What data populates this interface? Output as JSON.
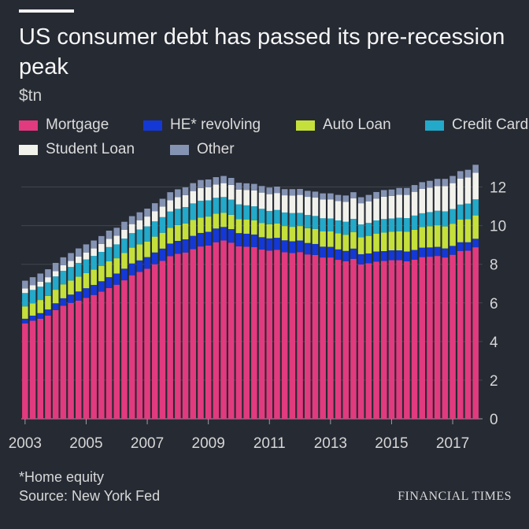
{
  "title": "US consumer debt has passed its pre-recession peak",
  "unit_label": "$tn",
  "footnote": "*Home equity",
  "source": "Source: New York Fed",
  "brand": "FINANCIAL TIMES",
  "colors": {
    "background": "#262a33",
    "mortgage": "#e23a7e",
    "he_revolving": "#1438d6",
    "auto_loan": "#c5e03a",
    "credit_card": "#23a9c9",
    "student_loan": "#f2f2ec",
    "other": "#8593b3"
  },
  "legend": [
    {
      "label": "Mortgage",
      "color": "#e23a7e"
    },
    {
      "label": "HE* revolving",
      "color": "#1438d6"
    },
    {
      "label": "Auto Loan",
      "color": "#c5e03a"
    },
    {
      "label": "Credit Card",
      "color": "#23a9c9"
    },
    {
      "label": "Student Loan",
      "color": "#f2f2ec"
    },
    {
      "label": "Other",
      "color": "#8593b3"
    }
  ],
  "chart_data": {
    "type": "bar",
    "stacked": true,
    "title": "US consumer debt has passed its pre-recession peak",
    "ylabel": "$tn",
    "ylim": [
      0,
      13
    ],
    "yticks": [
      0,
      2,
      4,
      6,
      8,
      10,
      12
    ],
    "y_axis_side": "right",
    "xticks": [
      "2003",
      "2005",
      "2007",
      "2009",
      "2011",
      "2013",
      "2015",
      "2017"
    ],
    "categories": [
      "2003Q1",
      "2003Q2",
      "2003Q3",
      "2003Q4",
      "2004Q1",
      "2004Q2",
      "2004Q3",
      "2004Q4",
      "2005Q1",
      "2005Q2",
      "2005Q3",
      "2005Q4",
      "2006Q1",
      "2006Q2",
      "2006Q3",
      "2006Q4",
      "2007Q1",
      "2007Q2",
      "2007Q3",
      "2007Q4",
      "2008Q1",
      "2008Q2",
      "2008Q3",
      "2008Q4",
      "2009Q1",
      "2009Q2",
      "2009Q3",
      "2009Q4",
      "2010Q1",
      "2010Q2",
      "2010Q3",
      "2010Q4",
      "2011Q1",
      "2011Q2",
      "2011Q3",
      "2011Q4",
      "2012Q1",
      "2012Q2",
      "2012Q3",
      "2012Q4",
      "2013Q1",
      "2013Q2",
      "2013Q3",
      "2013Q4",
      "2014Q1",
      "2014Q2",
      "2014Q3",
      "2014Q4",
      "2015Q1",
      "2015Q2",
      "2015Q3",
      "2015Q4",
      "2016Q1",
      "2016Q2",
      "2016Q3",
      "2016Q4",
      "2017Q1",
      "2017Q2",
      "2017Q3",
      "2017Q4"
    ],
    "series": [
      {
        "name": "Mortgage",
        "color": "#e23a7e",
        "values": [
          4.94,
          5.08,
          5.18,
          5.34,
          5.63,
          5.85,
          6.0,
          6.12,
          6.26,
          6.41,
          6.58,
          6.77,
          6.94,
          7.17,
          7.43,
          7.6,
          7.77,
          8.0,
          8.18,
          8.42,
          8.54,
          8.61,
          8.78,
          8.92,
          8.97,
          9.14,
          9.23,
          9.12,
          8.93,
          8.91,
          8.89,
          8.76,
          8.71,
          8.75,
          8.62,
          8.58,
          8.63,
          8.51,
          8.48,
          8.35,
          8.35,
          8.23,
          8.16,
          8.28,
          7.99,
          8.05,
          8.14,
          8.17,
          8.21,
          8.21,
          8.15,
          8.24,
          8.37,
          8.39,
          8.43,
          8.35,
          8.49,
          8.69,
          8.7,
          8.88
        ]
      },
      {
        "name": "HE* revolving",
        "color": "#1438d6",
        "values": [
          0.24,
          0.26,
          0.29,
          0.32,
          0.35,
          0.39,
          0.43,
          0.47,
          0.5,
          0.52,
          0.54,
          0.56,
          0.58,
          0.6,
          0.61,
          0.6,
          0.6,
          0.61,
          0.63,
          0.65,
          0.67,
          0.68,
          0.69,
          0.7,
          0.71,
          0.71,
          0.7,
          0.7,
          0.68,
          0.67,
          0.65,
          0.64,
          0.63,
          0.62,
          0.62,
          0.61,
          0.6,
          0.59,
          0.57,
          0.56,
          0.55,
          0.54,
          0.53,
          0.53,
          0.53,
          0.51,
          0.52,
          0.51,
          0.51,
          0.51,
          0.51,
          0.5,
          0.49,
          0.48,
          0.47,
          0.47,
          0.46,
          0.45,
          0.44,
          0.44
        ]
      },
      {
        "name": "Auto Loan",
        "color": "#c5e03a",
        "values": [
          0.64,
          0.64,
          0.68,
          0.7,
          0.7,
          0.72,
          0.73,
          0.77,
          0.78,
          0.79,
          0.8,
          0.82,
          0.79,
          0.82,
          0.82,
          0.83,
          0.81,
          0.82,
          0.82,
          0.82,
          0.82,
          0.82,
          0.82,
          0.8,
          0.79,
          0.77,
          0.74,
          0.74,
          0.73,
          0.73,
          0.73,
          0.74,
          0.73,
          0.74,
          0.74,
          0.75,
          0.75,
          0.77,
          0.78,
          0.79,
          0.81,
          0.83,
          0.84,
          0.86,
          0.88,
          0.91,
          0.93,
          0.96,
          0.97,
          0.99,
          1.02,
          1.05,
          1.07,
          1.1,
          1.12,
          1.14,
          1.15,
          1.17,
          1.19,
          1.21
        ]
      },
      {
        "name": "Credit Card",
        "color": "#23a9c9",
        "values": [
          0.69,
          0.69,
          0.69,
          0.7,
          0.69,
          0.7,
          0.7,
          0.71,
          0.71,
          0.71,
          0.72,
          0.74,
          0.72,
          0.74,
          0.75,
          0.77,
          0.78,
          0.79,
          0.81,
          0.84,
          0.84,
          0.85,
          0.86,
          0.87,
          0.84,
          0.82,
          0.81,
          0.79,
          0.76,
          0.74,
          0.73,
          0.73,
          0.69,
          0.7,
          0.7,
          0.71,
          0.68,
          0.68,
          0.67,
          0.68,
          0.66,
          0.67,
          0.67,
          0.68,
          0.66,
          0.67,
          0.68,
          0.7,
          0.68,
          0.7,
          0.71,
          0.73,
          0.71,
          0.73,
          0.75,
          0.78,
          0.76,
          0.78,
          0.81,
          0.83
        ]
      },
      {
        "name": "Student Loan",
        "color": "#f2f2ec",
        "values": [
          0.24,
          0.25,
          0.26,
          0.27,
          0.28,
          0.29,
          0.31,
          0.33,
          0.36,
          0.39,
          0.41,
          0.43,
          0.45,
          0.46,
          0.47,
          0.48,
          0.51,
          0.53,
          0.55,
          0.58,
          0.61,
          0.62,
          0.64,
          0.66,
          0.68,
          0.69,
          0.72,
          0.76,
          0.77,
          0.8,
          0.82,
          0.84,
          0.87,
          0.88,
          0.89,
          0.91,
          0.93,
          0.94,
          0.95,
          0.97,
          0.99,
          1.0,
          1.03,
          1.06,
          1.1,
          1.12,
          1.13,
          1.16,
          1.17,
          1.19,
          1.2,
          1.23,
          1.26,
          1.26,
          1.28,
          1.31,
          1.34,
          1.34,
          1.36,
          1.38
        ]
      },
      {
        "name": "Other",
        "color": "#8593b3",
        "values": [
          0.4,
          0.41,
          0.42,
          0.41,
          0.42,
          0.41,
          0.41,
          0.42,
          0.42,
          0.41,
          0.41,
          0.42,
          0.41,
          0.41,
          0.41,
          0.41,
          0.41,
          0.41,
          0.4,
          0.42,
          0.4,
          0.4,
          0.41,
          0.41,
          0.4,
          0.38,
          0.37,
          0.36,
          0.35,
          0.34,
          0.34,
          0.34,
          0.34,
          0.33,
          0.32,
          0.33,
          0.31,
          0.31,
          0.31,
          0.32,
          0.31,
          0.32,
          0.33,
          0.32,
          0.31,
          0.33,
          0.34,
          0.34,
          0.33,
          0.35,
          0.36,
          0.35,
          0.35,
          0.36,
          0.37,
          0.37,
          0.37,
          0.39,
          0.39,
          0.41
        ]
      }
    ]
  }
}
